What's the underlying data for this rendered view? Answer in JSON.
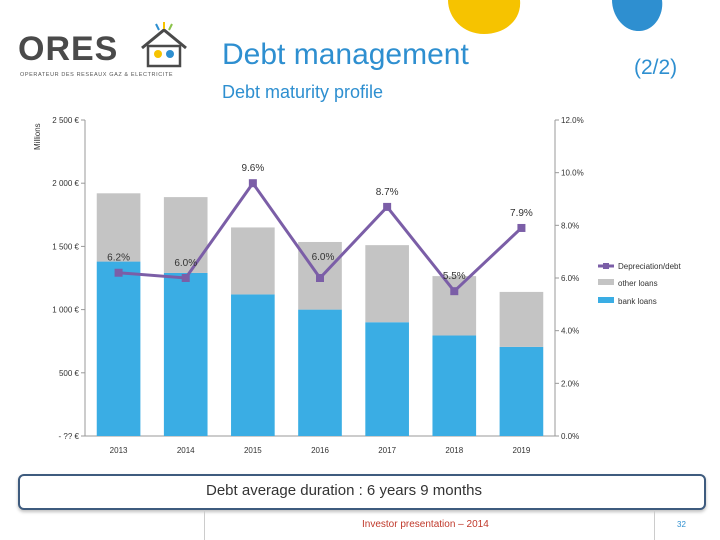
{
  "header": {
    "logo_text": "ORES",
    "logo_subtitle": "OPERATEUR DES RESEAUX GAZ & ELECTRICITE",
    "title": "Debt management",
    "page_indicator": "(2/2)",
    "subtitle": "Debt maturity profile"
  },
  "chart_data": {
    "type": "bar",
    "stacked": true,
    "categories": [
      "2013",
      "2014",
      "2015",
      "2016",
      "2017",
      "2018",
      "2019"
    ],
    "y_left": {
      "unit_label": "Millions",
      "range": [
        0,
        2500
      ],
      "ticks": [
        0,
        500,
        1000,
        1500,
        2000,
        2500
      ],
      "tick_labels": [
        "- ?? €",
        "500 €",
        "1 000 €",
        "1 500 €",
        "2 000 €",
        "2 500 €"
      ]
    },
    "y_right": {
      "range": [
        0,
        12
      ],
      "ticks": [
        0,
        2,
        4,
        6,
        8,
        10,
        12
      ],
      "tick_labels": [
        "0.0%",
        "2.0%",
        "4.0%",
        "6.0%",
        "8.0%",
        "10.0%",
        "12.0%"
      ]
    },
    "series": [
      {
        "name": "bank loans",
        "kind": "bar",
        "color": "#3aade4",
        "values": [
          1380,
          1290,
          1120,
          1000,
          900,
          795,
          705
        ]
      },
      {
        "name": "other loans",
        "kind": "bar",
        "color": "#c4c4c4",
        "values": [
          540,
          600,
          530,
          535,
          610,
          470,
          435
        ]
      },
      {
        "name": "Depreciation/debt",
        "kind": "line",
        "axis": "right",
        "color": "#7b5ea7",
        "values": [
          6.2,
          6.0,
          9.6,
          6.0,
          8.7,
          5.5,
          7.9
        ],
        "labels": [
          "6.2%",
          "6.0%",
          "9.6%",
          "6.0%",
          "8.7%",
          "5.5%",
          "7.9%"
        ]
      }
    ],
    "legend_position": "right",
    "grid": false
  },
  "footer": {
    "summary": "Debt average duration : 6 years 9 months",
    "presentation": "Investor presentation – 2014",
    "page_number": "32"
  },
  "colors": {
    "accent": "#2e8fd0",
    "footer_border": "#3e5b7e",
    "footer_text": "#c0392b",
    "logo_blob_yellow": "#f6c300",
    "logo_blob_blue": "#2e8fd0"
  }
}
